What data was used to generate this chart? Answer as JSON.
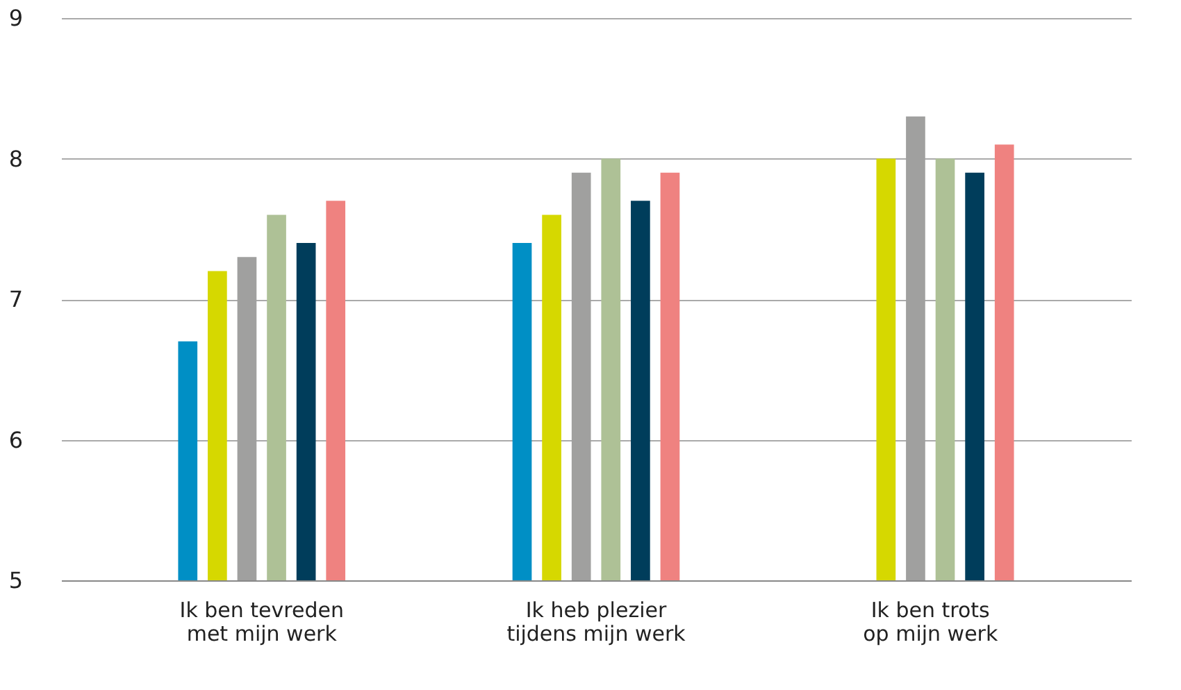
{
  "chart_data": {
    "type": "bar",
    "categories": [
      "Ik ben tevreden\nmet mijn werk",
      "Ik heb plezier\ntijdens mijn werk",
      "Ik ben trots\nop mijn werk"
    ],
    "series": [
      {
        "color": "#008fc5",
        "values": [
          6.7,
          7.4,
          null
        ]
      },
      {
        "color": "#d6d800",
        "values": [
          7.2,
          7.6,
          8.0
        ]
      },
      {
        "color": "#a0a09f",
        "values": [
          7.3,
          7.9,
          8.3
        ]
      },
      {
        "color": "#aec196",
        "values": [
          7.6,
          8.0,
          8.0
        ]
      },
      {
        "color": "#003d5b",
        "values": [
          7.4,
          7.7,
          7.9
        ]
      },
      {
        "color": "#ef8280",
        "values": [
          7.7,
          7.9,
          8.1
        ]
      }
    ],
    "ylim": [
      5,
      9
    ],
    "yticks": [
      5,
      6,
      7,
      8,
      9
    ],
    "grid": "y",
    "legend": false
  }
}
